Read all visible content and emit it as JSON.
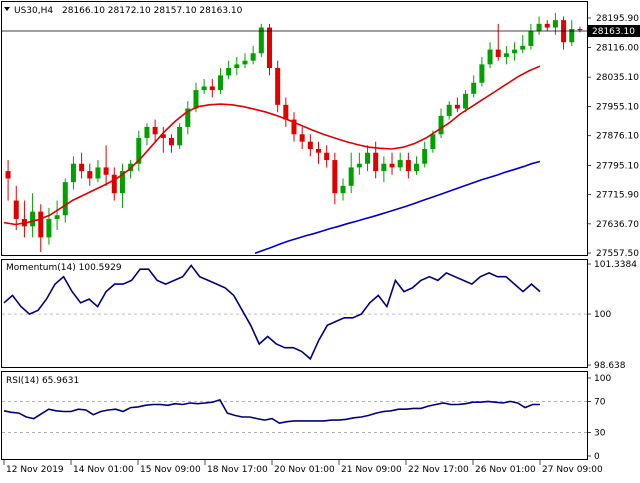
{
  "header": {
    "symbol": "US30,H4",
    "ohlc": "28166.10 28172.10 28157.10 28163.10"
  },
  "current_price_label": "28163.10",
  "price_axis_labels": [
    "28195.90",
    "28116.00",
    "28035.10",
    "27955.10",
    "27876.10",
    "27795.10",
    "27715.90",
    "27636.70",
    "27557.50"
  ],
  "momentum": {
    "label": "Momentum(14) 100.5929",
    "axis_labels": [
      "101.3384",
      "100",
      "98.638"
    ]
  },
  "rsi": {
    "label": "RSI(14) 65.9631",
    "axis_labels": [
      "100",
      "70",
      "30",
      "0"
    ]
  },
  "time_labels": [
    "12 Nov 2019",
    "14 Nov 01:00",
    "15 Nov 09:00",
    "18 Nov 17:00",
    "20 Nov 01:00",
    "21 Nov 09:00",
    "22 Nov 17:00",
    "26 Nov 01:00",
    "27 Nov 09:00"
  ],
  "colors": {
    "bull": "#00a000",
    "bear": "#e00000",
    "ma_fast": "#e00000",
    "ma_slow": "#0000c0",
    "indicator": "#00007f",
    "border": "#000000"
  },
  "chart_data": [
    {
      "type": "candlestick",
      "title": "US30,H4",
      "ylim": [
        27557.5,
        28195.9
      ],
      "y_ticks": [
        28195.9,
        28116.0,
        28035.1,
        27955.1,
        27876.1,
        27795.1,
        27715.9,
        27636.7,
        27557.5
      ],
      "candles": [
        [
          27780,
          27760,
          27810,
          27700
        ],
        [
          27700,
          27650,
          27740,
          27620
        ],
        [
          27650,
          27630,
          27700,
          27600
        ],
        [
          27630,
          27670,
          27720,
          27600
        ],
        [
          27670,
          27600,
          27690,
          27560
        ],
        [
          27600,
          27650,
          27680,
          27580
        ],
        [
          27650,
          27660,
          27700,
          27620
        ],
        [
          27660,
          27750,
          27760,
          27640
        ],
        [
          27750,
          27800,
          27820,
          27730
        ],
        [
          27800,
          27780,
          27830,
          27760
        ],
        [
          27780,
          27760,
          27800,
          27740
        ],
        [
          27760,
          27790,
          27810,
          27750
        ],
        [
          27790,
          27770,
          27850,
          27740
        ],
        [
          27770,
          27720,
          27790,
          27700
        ],
        [
          27720,
          27780,
          27800,
          27680
        ],
        [
          27780,
          27800,
          27810,
          27760
        ],
        [
          27800,
          27870,
          27890,
          27780
        ],
        [
          27870,
          27900,
          27910,
          27850
        ],
        [
          27900,
          27880,
          27920,
          27860
        ],
        [
          27880,
          27870,
          27900,
          27830
        ],
        [
          27870,
          27850,
          27880,
          27830
        ],
        [
          27850,
          27900,
          27910,
          27840
        ],
        [
          27900,
          27950,
          27970,
          27880
        ],
        [
          27950,
          28000,
          28020,
          27940
        ],
        [
          28000,
          28010,
          28030,
          27990
        ],
        [
          28010,
          28000,
          28030,
          27980
        ],
        [
          28000,
          28040,
          28060,
          27990
        ],
        [
          28040,
          28060,
          28080,
          28030
        ],
        [
          28060,
          28070,
          28090,
          28040
        ],
        [
          28070,
          28080,
          28100,
          28060
        ],
        [
          28080,
          28100,
          28120,
          28070
        ],
        [
          28100,
          28170,
          28180,
          28090
        ],
        [
          28170,
          28060,
          28180,
          28040
        ],
        [
          28060,
          27960,
          28080,
          27940
        ],
        [
          27960,
          27920,
          27980,
          27900
        ],
        [
          27920,
          27880,
          27940,
          27860
        ],
        [
          27880,
          27860,
          27900,
          27840
        ],
        [
          27860,
          27840,
          27880,
          27820
        ],
        [
          27840,
          27830,
          27860,
          27800
        ],
        [
          27830,
          27810,
          27850,
          27790
        ],
        [
          27810,
          27720,
          27830,
          27690
        ],
        [
          27720,
          27740,
          27760,
          27700
        ],
        [
          27740,
          27790,
          27830,
          27720
        ],
        [
          27790,
          27800,
          27830,
          27770
        ],
        [
          27800,
          27830,
          27850,
          27780
        ],
        [
          27830,
          27780,
          27860,
          27760
        ],
        [
          27780,
          27800,
          27820,
          27750
        ],
        [
          27800,
          27790,
          27830,
          27770
        ],
        [
          27790,
          27810,
          27830,
          27780
        ],
        [
          27810,
          27780,
          27830,
          27760
        ],
        [
          27780,
          27800,
          27820,
          27770
        ],
        [
          27800,
          27840,
          27860,
          27790
        ],
        [
          27840,
          27880,
          27890,
          27830
        ],
        [
          27880,
          27930,
          27950,
          27870
        ],
        [
          27930,
          27960,
          27970,
          27920
        ],
        [
          27960,
          27950,
          27980,
          27940
        ],
        [
          27950,
          27990,
          28000,
          27940
        ],
        [
          27990,
          28020,
          28040,
          27980
        ],
        [
          28020,
          28070,
          28090,
          28010
        ],
        [
          28070,
          28110,
          28130,
          28060
        ],
        [
          28110,
          28090,
          28180,
          28080
        ],
        [
          28090,
          28100,
          28120,
          28070
        ],
        [
          28100,
          28110,
          28130,
          28080
        ],
        [
          28110,
          28120,
          28150,
          28100
        ],
        [
          28120,
          28160,
          28180,
          28110
        ],
        [
          28160,
          28180,
          28200,
          28150
        ],
        [
          28180,
          28170,
          28190,
          28160
        ],
        [
          28170,
          28190,
          28210,
          28150
        ],
        [
          28190,
          28130,
          28200,
          28110
        ],
        [
          28130,
          28166,
          28190,
          28120
        ],
        [
          28166,
          28163,
          28172,
          28157
        ]
      ],
      "series": [
        {
          "name": "",
          "color": "#e00000",
          "values": [
            27640,
            27635,
            27640,
            27648,
            27660,
            27680,
            27700,
            27715,
            27730,
            27745,
            27762,
            27785,
            27815,
            27850,
            27885,
            27915,
            27940,
            27955,
            27960,
            27962,
            27960,
            27955,
            27948,
            27940,
            27930,
            27918,
            27905,
            27892,
            27880,
            27870,
            27860,
            27852,
            27845,
            27842,
            27840,
            27845,
            27855,
            27870,
            27890,
            27910,
            27935,
            27955,
            27975,
            27995,
            28015,
            28035,
            28052,
            28065
          ]
        },
        {
          "name": "",
          "color": "#0000c0",
          "values": [
            27557,
            27565,
            27573,
            27582,
            27590,
            27597,
            27604,
            27610,
            27617,
            27624,
            27630,
            27637,
            27643,
            27650,
            27656,
            27663,
            27670,
            27677,
            27684,
            27692,
            27700,
            27708,
            27716,
            27724,
            27732,
            27740,
            27748,
            27756,
            27763,
            27770,
            27778,
            27785,
            27792,
            27800,
            27806
          ]
        }
      ]
    },
    {
      "type": "line",
      "title": "Momentum(14) 100.5929",
      "ylim": [
        98.638,
        101.3384
      ],
      "y_ticks": [
        101.3384,
        100,
        98.638
      ],
      "series": [
        {
          "name": "Momentum(14)",
          "color": "#00007f",
          "values": [
            100.3,
            100.5,
            100.2,
            100.0,
            100.1,
            100.4,
            100.8,
            101.0,
            100.6,
            100.3,
            100.4,
            100.2,
            100.6,
            100.8,
            100.8,
            100.9,
            101.2,
            101.2,
            100.9,
            100.8,
            100.9,
            101.0,
            101.3,
            101.0,
            100.9,
            100.8,
            100.7,
            100.5,
            100.1,
            99.7,
            99.2,
            99.4,
            99.2,
            99.1,
            99.1,
            99.0,
            98.8,
            99.3,
            99.7,
            99.8,
            99.9,
            99.9,
            100.0,
            100.3,
            100.5,
            100.2,
            100.9,
            100.6,
            100.7,
            100.9,
            101.0,
            100.9,
            101.1,
            101.0,
            100.9,
            100.8,
            101.0,
            101.1,
            101.0,
            101.0,
            100.8,
            100.6,
            100.8,
            100.6
          ]
        }
      ]
    },
    {
      "type": "line",
      "title": "RSI(14) 65.9631",
      "ylim": [
        0,
        100
      ],
      "y_ticks": [
        100,
        70,
        30,
        0
      ],
      "series": [
        {
          "name": "RSI(14)",
          "color": "#00007f",
          "values": [
            58,
            56,
            55,
            50,
            48,
            54,
            60,
            58,
            57,
            57,
            60,
            59,
            53,
            57,
            59,
            60,
            57,
            62,
            63,
            65,
            66,
            66,
            65,
            67,
            66,
            68,
            67,
            68,
            69,
            72,
            55,
            52,
            50,
            50,
            48,
            46,
            48,
            42,
            44,
            45,
            45,
            45,
            45,
            45,
            46,
            46,
            47,
            49,
            50,
            52,
            55,
            57,
            58,
            60,
            60,
            61,
            61,
            64,
            66,
            68,
            66,
            66,
            67,
            69,
            69,
            70,
            69,
            68,
            70,
            68,
            62,
            66,
            66
          ]
        }
      ]
    }
  ]
}
